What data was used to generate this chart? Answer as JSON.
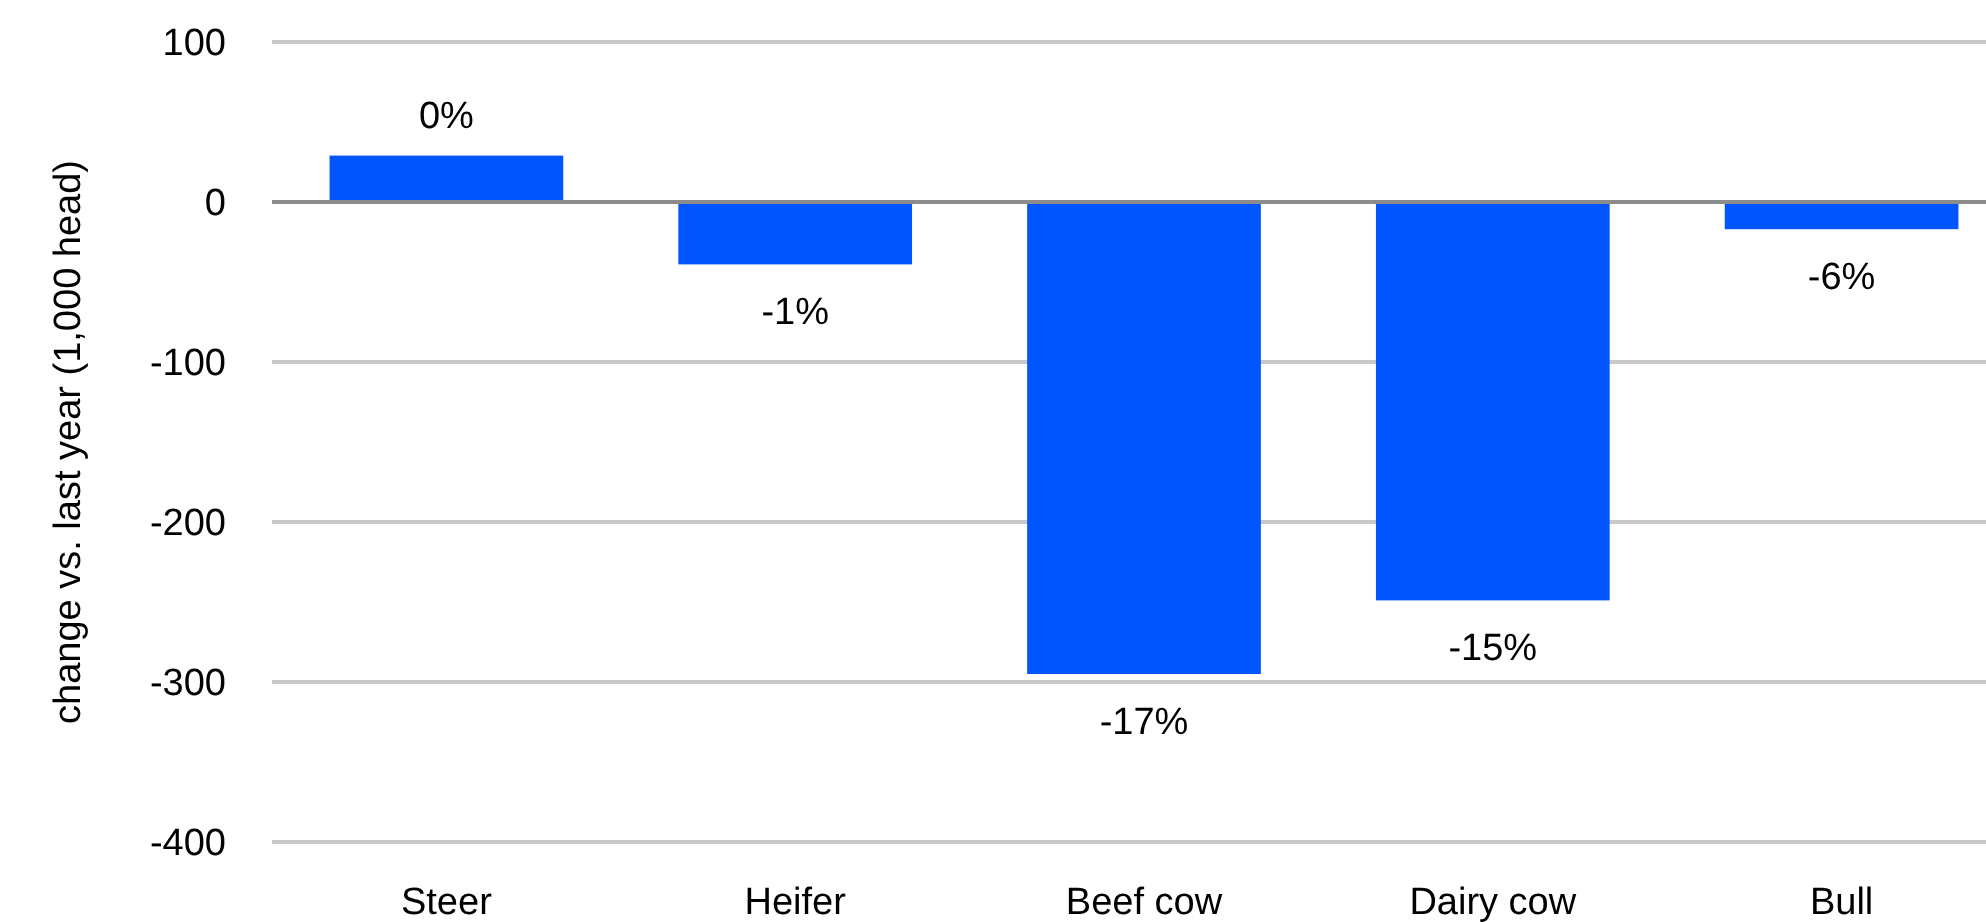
{
  "chart_data": {
    "type": "bar",
    "ylabel": "change vs. last year (1,000 head)",
    "categories": [
      "Steer",
      "Heifer",
      "Beef cow",
      "Dairy cow",
      "Bull"
    ],
    "values": [
      29,
      -39,
      -295,
      -249,
      -17
    ],
    "annotations": [
      {
        "text": "0%",
        "x": "Steer",
        "y": 29
      },
      {
        "text": "-1%",
        "x": "Heifer",
        "y": -39
      },
      {
        "text": "-17%",
        "x": "Beef cow",
        "y": -295
      },
      {
        "text": "-15%",
        "x": "Dairy cow",
        "y": -249
      },
      {
        "text": "-6%",
        "x": "Bull",
        "y": -17
      }
    ],
    "color": "#0055ff",
    "ylim": [
      -400,
      100
    ],
    "yticks": [
      -400,
      -300,
      -200,
      -100,
      0,
      100
    ],
    "grid": "y"
  }
}
